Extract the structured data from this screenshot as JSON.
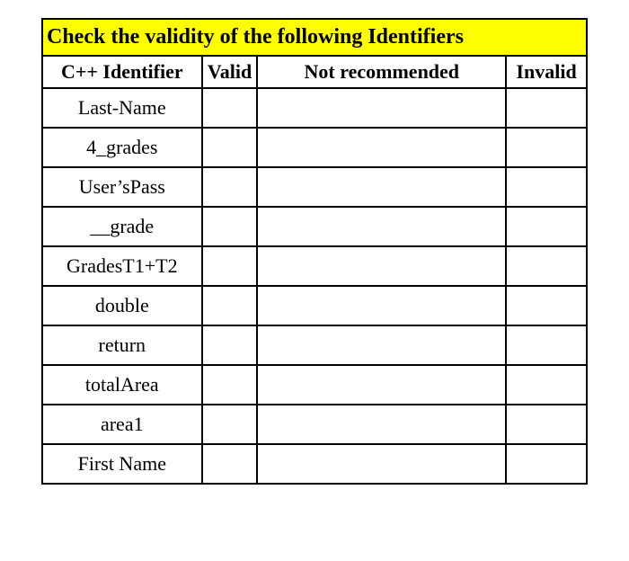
{
  "table": {
    "title": "Check the validity of the following Identifiers",
    "columns": [
      "C++ Identifier",
      "Valid",
      "Not recommended",
      "Invalid"
    ],
    "rows": [
      {
        "identifier": "Last-Name",
        "valid": "",
        "not_recommended": "",
        "invalid": ""
      },
      {
        "identifier": "4_grades",
        "valid": "",
        "not_recommended": "",
        "invalid": ""
      },
      {
        "identifier": "User’sPass",
        "valid": "",
        "not_recommended": "",
        "invalid": ""
      },
      {
        "identifier": "__grade",
        "valid": "",
        "not_recommended": "",
        "invalid": ""
      },
      {
        "identifier": "GradesT1+T2",
        "valid": "",
        "not_recommended": "",
        "invalid": ""
      },
      {
        "identifier": "double",
        "valid": "",
        "not_recommended": "",
        "invalid": ""
      },
      {
        "identifier": "return",
        "valid": "",
        "not_recommended": "",
        "invalid": ""
      },
      {
        "identifier": "totalArea",
        "valid": "",
        "not_recommended": "",
        "invalid": ""
      },
      {
        "identifier": "area1",
        "valid": "",
        "not_recommended": "",
        "invalid": ""
      },
      {
        "identifier": "First Name",
        "valid": "",
        "not_recommended": "",
        "invalid": ""
      }
    ],
    "title_bg": "#ffff00",
    "title_fontsize": 24,
    "header_fontsize": 22,
    "cell_fontsize": 22,
    "border_color": "#000000",
    "background_color": "#ffffff"
  }
}
